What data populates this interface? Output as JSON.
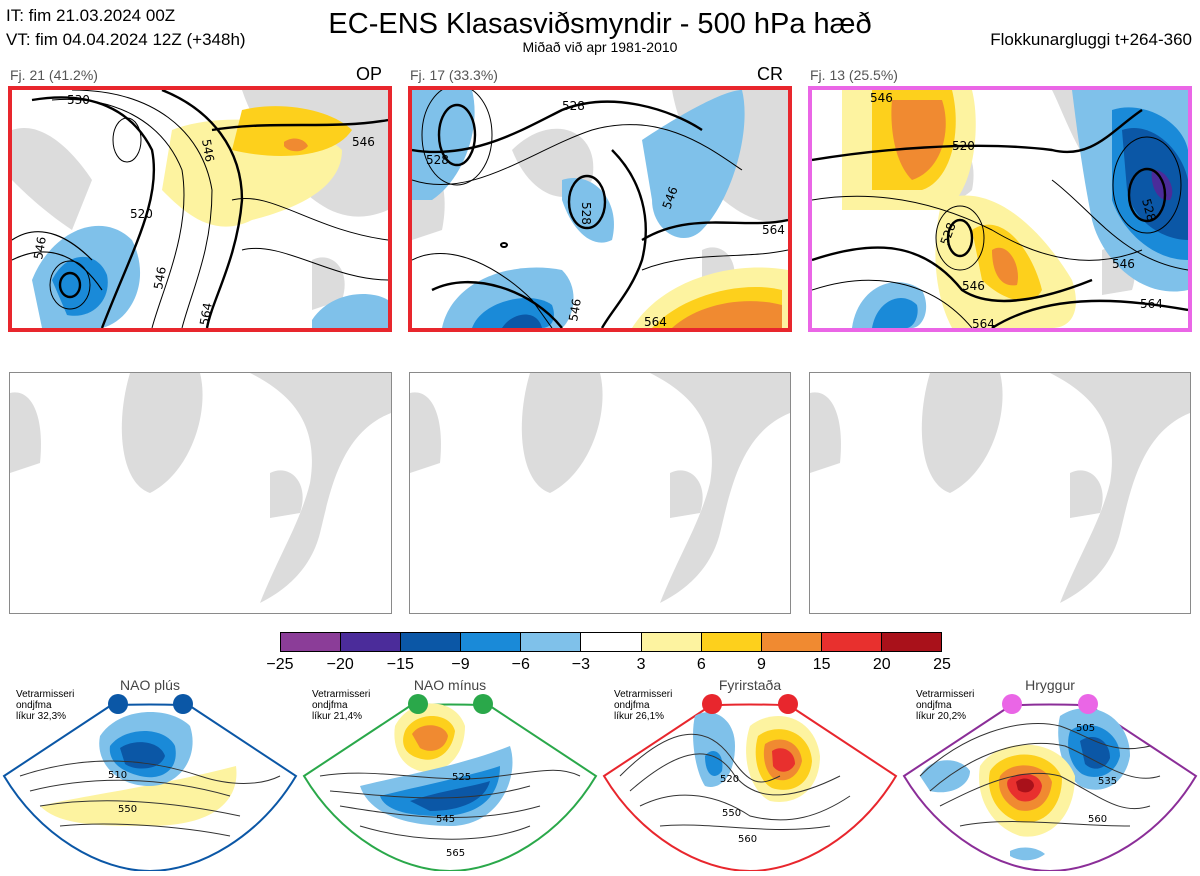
{
  "header": {
    "init_time": "IT: fim 21.03.2024 00Z",
    "valid_time": "VT: fim 04.04.2024 12Z  (+348h)",
    "title": "EC-ENS Klasasviðsmyndir - 500 hPa hæð",
    "subtitle": "Miðað við apr 1981-2010",
    "window": "Flokkunargluggi t+264-360"
  },
  "clusters": [
    {
      "label": "Fj. 21 (41.2%)",
      "tag": "OP",
      "border_color": "#e8262d",
      "contours": [
        "530",
        "546",
        "520",
        "546",
        "546",
        "546",
        "564"
      ]
    },
    {
      "label": "Fj. 17 (33.3%)",
      "tag": "CR",
      "border_color": "#e8262d",
      "contours": [
        "528",
        "528",
        "528",
        "546",
        "564",
        "546",
        "564"
      ]
    },
    {
      "label": "Fj. 13 (25.5%)",
      "tag": "",
      "border_color": "#ea66e6",
      "contours": [
        "546",
        "528",
        "520",
        "528",
        "546",
        "546",
        "564",
        "564"
      ]
    }
  ],
  "colorbar": {
    "ticks": [
      "−25",
      "−20",
      "−15",
      "−9",
      "−6",
      "−3",
      "3",
      "6",
      "9",
      "15",
      "20",
      "25"
    ],
    "colors": [
      "#8b3d98",
      "#4b2c9a",
      "#0b57a6",
      "#1a8ad8",
      "#7fc1ea",
      "#ffffff",
      "#fdf3a0",
      "#fdd01c",
      "#f08a31",
      "#e8302e",
      "#a9111a"
    ]
  },
  "regimes": [
    {
      "name": "NAO plús",
      "note1": "Vetrarmisseri",
      "note2": "ondjfma",
      "note3": "líkur 32,3%",
      "color": "#0b57a6",
      "labels": [
        "510",
        "550"
      ]
    },
    {
      "name": "NAO mínus",
      "note1": "Vetrarmisseri",
      "note2": "ondjfma",
      "note3": "líkur 21,4%",
      "color": "#2aa84a",
      "labels": [
        "525",
        "545",
        "565"
      ]
    },
    {
      "name": "Fyrirstaða",
      "note1": "Vetrarmisseri",
      "note2": "ondjfma",
      "note3": "líkur 26,1%",
      "color": "#e8262d",
      "labels": [
        "520",
        "550",
        "560"
      ]
    },
    {
      "name": "Hryggur",
      "note1": "Vetrarmisseri",
      "note2": "ondjfma",
      "note3": "líkur 20,2%",
      "color": "#8b2e98",
      "labels": [
        "505",
        "535",
        "560"
      ]
    }
  ],
  "icons": {
    "land": "land-mass-shape",
    "regime_dot": "circle-marker"
  }
}
